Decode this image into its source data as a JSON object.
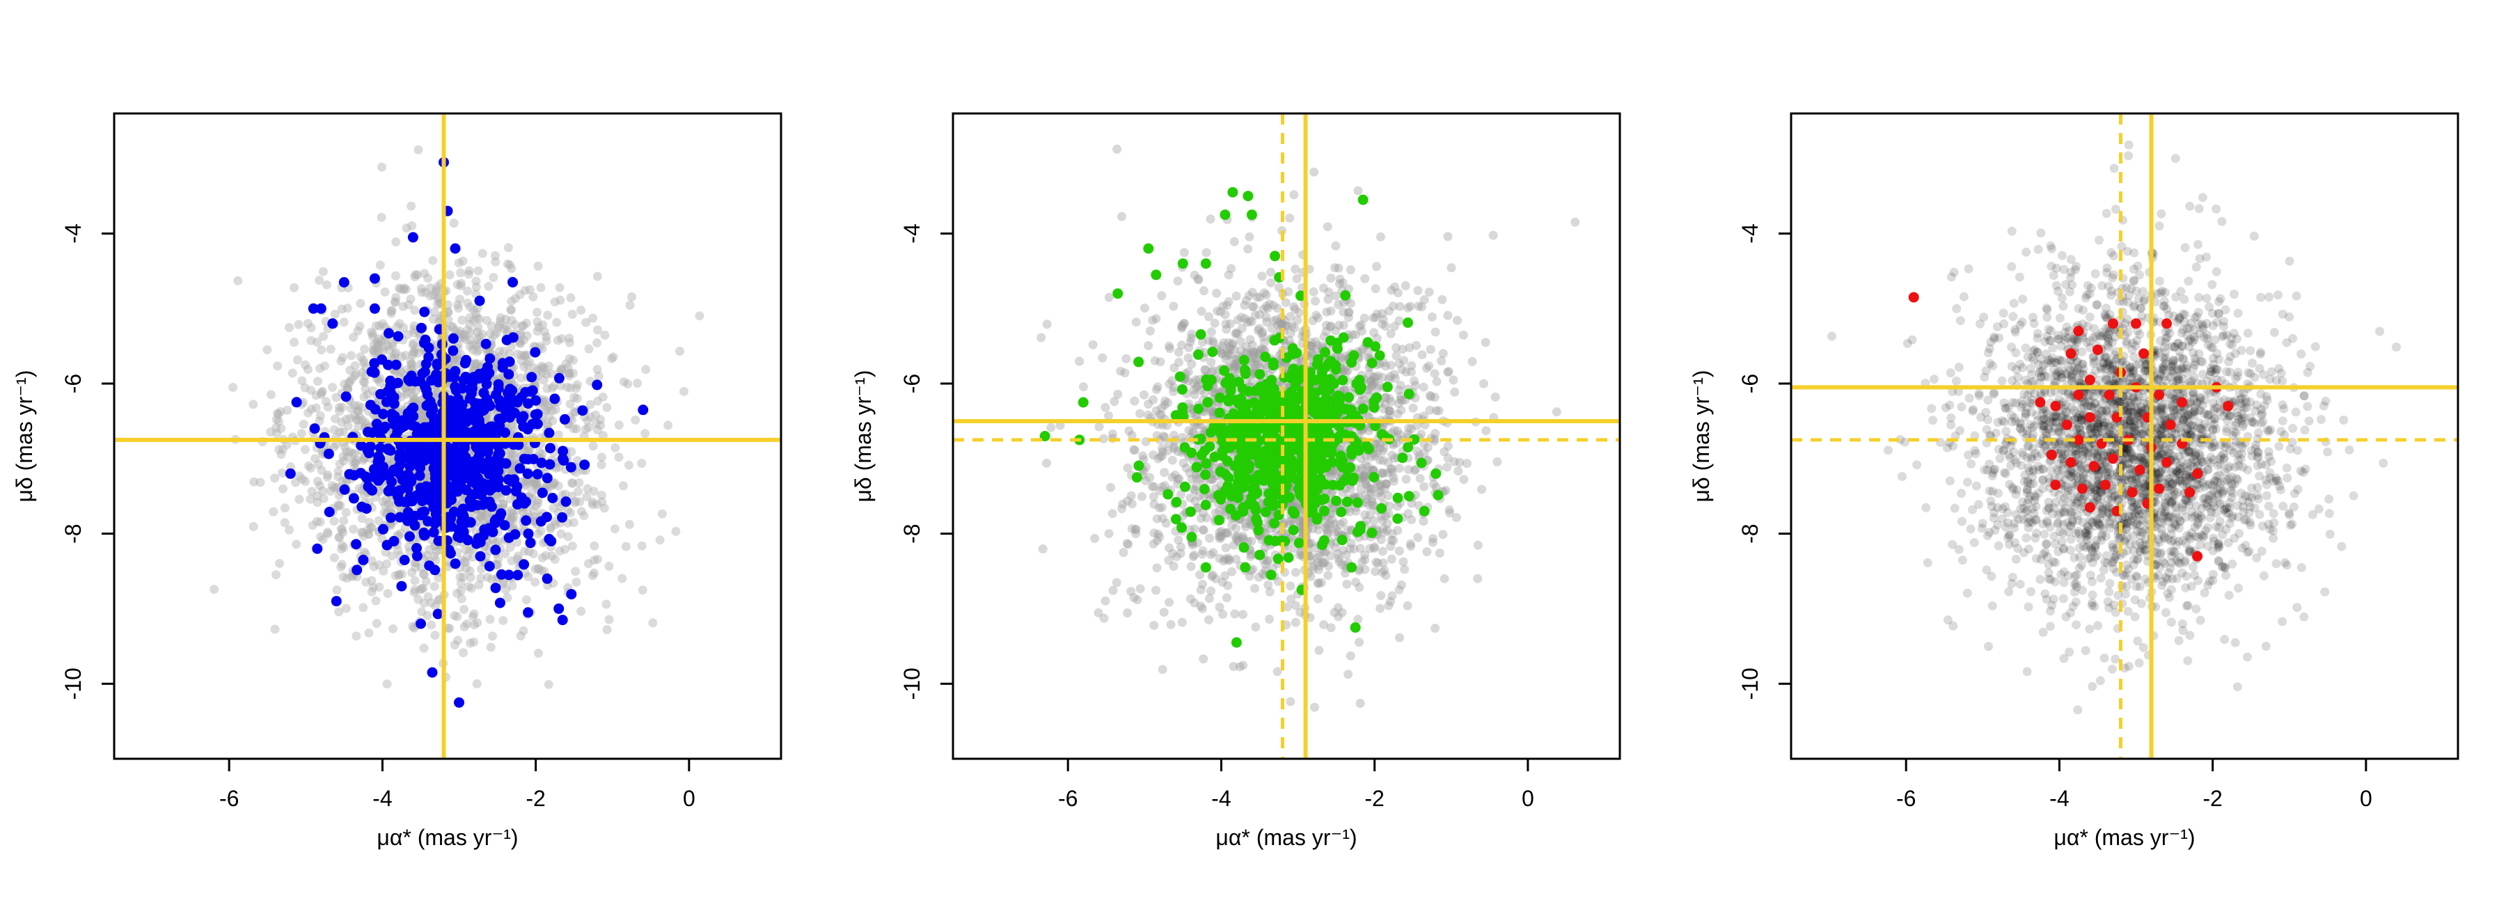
{
  "figure": {
    "panels": 3
  },
  "chart_data": [
    {
      "type": "scatter",
      "panel": "left",
      "xlabel": "μα* (mas yr⁻¹)",
      "ylabel": "μδ (mas yr⁻¹)",
      "xlim": [
        -7.5,
        1.2
      ],
      "ylim": [
        -11.0,
        -2.4
      ],
      "y_axis_inverted": true,
      "x_ticks": [
        -6,
        -4,
        -2,
        0
      ],
      "y_ticks": [
        -4,
        -6,
        -8,
        -10
      ],
      "grid": false,
      "background_cloud": {
        "description_color": "#b0b0b0",
        "opacity": 0.45,
        "center": [
          -3.1,
          -6.8
        ],
        "spread": [
          0.95,
          1.05
        ],
        "count": 2400
      },
      "highlight": {
        "color": "#0000ee",
        "center": [
          -3.1,
          -6.9
        ],
        "spread": [
          0.6,
          0.65
        ],
        "count": 700,
        "outliers": [
          [
            -3.2,
            -3.05
          ],
          [
            -3.15,
            -3.7
          ],
          [
            -3.05,
            -4.2
          ],
          [
            -3.6,
            -4.05
          ],
          [
            -4.1,
            -4.6
          ],
          [
            -4.5,
            -4.65
          ],
          [
            -4.8,
            -5.0
          ],
          [
            -4.9,
            -5.0
          ],
          [
            -4.65,
            -5.2
          ],
          [
            -4.1,
            -5.0
          ],
          [
            -2.3,
            -4.65
          ],
          [
            -0.6,
            -6.35
          ],
          [
            -5.2,
            -7.2
          ],
          [
            -4.85,
            -8.2
          ],
          [
            -4.6,
            -8.9
          ],
          [
            -3.75,
            -8.7
          ],
          [
            -3.5,
            -9.2
          ],
          [
            -3.35,
            -9.85
          ],
          [
            -3.0,
            -10.25
          ],
          [
            -1.85,
            -8.6
          ],
          [
            -1.7,
            -9.0
          ],
          [
            -1.65,
            -9.15
          ],
          [
            -1.8,
            -8.1
          ],
          [
            -2.35,
            -8.55
          ],
          [
            -4.25,
            -8.35
          ],
          [
            -3.85,
            -8.1
          ],
          [
            -2.1,
            -9.05
          ]
        ]
      },
      "reference_lines": {
        "color": "#f5d02b",
        "solid_x": -3.2,
        "solid_y": -6.75
      }
    },
    {
      "type": "scatter",
      "panel": "middle",
      "xlabel": "μα* (mas yr⁻¹)",
      "ylabel": "μδ (mas yr⁻¹)",
      "xlim": [
        -7.5,
        1.2
      ],
      "ylim": [
        -11.0,
        -2.4
      ],
      "y_axis_inverted": true,
      "x_ticks": [
        -6,
        -4,
        -2,
        0
      ],
      "y_ticks": [
        -4,
        -6,
        -8,
        -10
      ],
      "grid": false,
      "background_cloud": {
        "description_color": "#9e9e9e",
        "opacity": 0.4,
        "center": [
          -3.1,
          -6.8
        ],
        "spread": [
          0.95,
          1.05
        ],
        "count": 2400
      },
      "highlight": {
        "color": "#22cc00",
        "center": [
          -3.2,
          -6.75
        ],
        "spread": [
          0.6,
          0.6
        ],
        "count": 650,
        "outliers": [
          [
            -3.85,
            -3.45
          ],
          [
            -3.65,
            -3.5
          ],
          [
            -3.95,
            -3.75
          ],
          [
            -3.6,
            -3.75
          ],
          [
            -2.15,
            -3.55
          ],
          [
            -4.95,
            -4.2
          ],
          [
            -4.2,
            -4.4
          ],
          [
            -4.5,
            -4.4
          ],
          [
            -4.85,
            -4.55
          ],
          [
            -5.35,
            -4.8
          ],
          [
            -3.3,
            -4.3
          ],
          [
            -6.3,
            -6.7
          ],
          [
            -5.8,
            -6.25
          ],
          [
            -5.85,
            -6.75
          ],
          [
            -5.1,
            -7.25
          ],
          [
            -1.55,
            -7.5
          ],
          [
            -1.2,
            -7.2
          ],
          [
            -1.35,
            -7.7
          ],
          [
            -1.7,
            -7.8
          ],
          [
            -2.3,
            -8.45
          ],
          [
            -3.8,
            -9.45
          ],
          [
            -2.95,
            -8.75
          ],
          [
            -3.35,
            -8.55
          ],
          [
            -2.25,
            -9.25
          ],
          [
            -4.2,
            -8.45
          ]
        ]
      },
      "reference_lines": {
        "color": "#f5d02b",
        "solid_x": -2.9,
        "solid_y": -6.5,
        "dashed_x": -3.2,
        "dashed_y": -6.75
      }
    },
    {
      "type": "scatter",
      "panel": "right",
      "xlabel": "μα* (mas yr⁻¹)",
      "ylabel": "μδ (mas yr⁻¹)",
      "xlim": [
        -7.5,
        1.2
      ],
      "ylim": [
        -11.0,
        -2.4
      ],
      "y_axis_inverted": true,
      "x_ticks": [
        -6,
        -4,
        -2,
        0
      ],
      "y_ticks": [
        -4,
        -6,
        -8,
        -10
      ],
      "grid": false,
      "background_cloud": {
        "description_color": "#000000",
        "opacity": 0.14,
        "center": [
          -3.1,
          -6.8
        ],
        "spread": [
          0.95,
          1.05
        ],
        "count": 2800
      },
      "highlight": {
        "color": "#ee1111",
        "points": [
          [
            -5.9,
            -4.85
          ],
          [
            -3.75,
            -5.3
          ],
          [
            -3.3,
            -5.2
          ],
          [
            -3.0,
            -5.2
          ],
          [
            -2.6,
            -5.2
          ],
          [
            -3.85,
            -5.6
          ],
          [
            -3.5,
            -5.55
          ],
          [
            -2.9,
            -5.6
          ],
          [
            -3.2,
            -5.85
          ],
          [
            -3.6,
            -5.95
          ],
          [
            -4.25,
            -6.25
          ],
          [
            -4.05,
            -6.3
          ],
          [
            -3.75,
            -6.15
          ],
          [
            -3.35,
            -6.15
          ],
          [
            -3.0,
            -6.05
          ],
          [
            -2.7,
            -6.15
          ],
          [
            -2.4,
            -6.25
          ],
          [
            -1.95,
            -6.05
          ],
          [
            -1.8,
            -6.3
          ],
          [
            -3.9,
            -6.55
          ],
          [
            -3.6,
            -6.45
          ],
          [
            -3.25,
            -6.45
          ],
          [
            -2.85,
            -6.45
          ],
          [
            -2.55,
            -6.55
          ],
          [
            -3.75,
            -6.75
          ],
          [
            -3.45,
            -6.8
          ],
          [
            -3.1,
            -6.75
          ],
          [
            -2.8,
            -6.85
          ],
          [
            -2.4,
            -6.8
          ],
          [
            -4.1,
            -6.95
          ],
          [
            -3.85,
            -7.05
          ],
          [
            -3.55,
            -7.1
          ],
          [
            -3.3,
            -7.0
          ],
          [
            -2.95,
            -7.15
          ],
          [
            -2.6,
            -7.05
          ],
          [
            -2.2,
            -7.2
          ],
          [
            -4.05,
            -7.35
          ],
          [
            -3.7,
            -7.4
          ],
          [
            -3.4,
            -7.35
          ],
          [
            -3.05,
            -7.45
          ],
          [
            -2.7,
            -7.4
          ],
          [
            -2.3,
            -7.45
          ],
          [
            -3.6,
            -7.65
          ],
          [
            -3.25,
            -7.7
          ],
          [
            -2.85,
            -7.6
          ],
          [
            -2.2,
            -8.3
          ]
        ]
      },
      "reference_lines": {
        "color": "#f5d02b",
        "solid_x": -2.8,
        "solid_y": -6.05,
        "dashed_x": -3.2,
        "dashed_y": -6.75
      }
    }
  ]
}
